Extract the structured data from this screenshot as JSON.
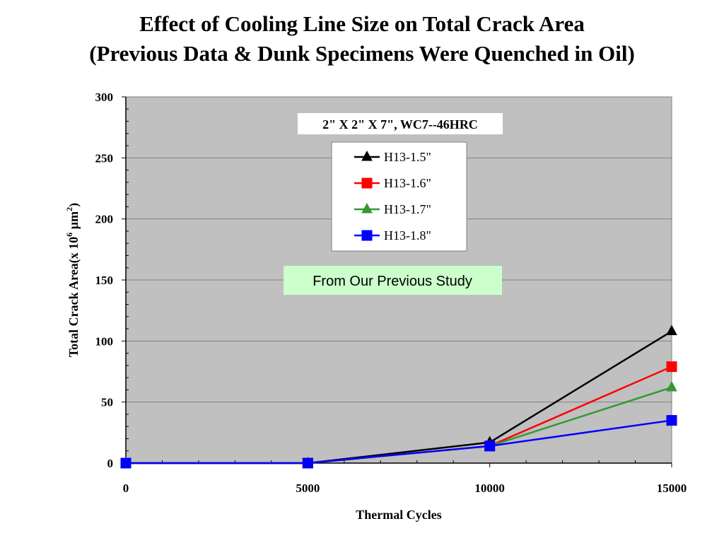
{
  "title_line1": "Effect of Cooling Line Size on Total Crack Area",
  "title_line2": "(Previous Data & Dunk Specimens Were Quenched in Oil)",
  "chart_data": {
    "type": "line",
    "xlabel": "Thermal Cycles",
    "ylabel_main": "Total Crack Area(x 10",
    "ylabel_sup1": "6",
    "ylabel_mid": " µm",
    "ylabel_sup2": "2",
    "ylabel_end": ")",
    "xlim": [
      0,
      15000
    ],
    "ylim": [
      0,
      300
    ],
    "xticks": [
      0,
      5000,
      10000,
      15000
    ],
    "yticks": [
      0,
      50,
      100,
      150,
      200,
      250,
      300
    ],
    "grid": "horizontal",
    "plot_background": "#c0c0c0",
    "series": [
      {
        "name": "H13-1.5\"",
        "color": "#000000",
        "marker": "triangle",
        "x": [
          0,
          5000,
          10000,
          15000
        ],
        "y": [
          0,
          0,
          17,
          108
        ]
      },
      {
        "name": "H13-1.6\"",
        "color": "#ff0000",
        "marker": "square",
        "x": [
          0,
          5000,
          10000,
          15000
        ],
        "y": [
          0,
          0,
          14,
          79
        ]
      },
      {
        "name": "H13-1.7\"",
        "color": "#339933",
        "marker": "triangle",
        "x": [
          0,
          5000,
          10000,
          15000
        ],
        "y": [
          0,
          0,
          14,
          62
        ]
      },
      {
        "name": "H13-1.8\"",
        "color": "#0000ff",
        "marker": "square",
        "x": [
          0,
          5000,
          10000,
          15000
        ],
        "y": [
          0,
          0,
          14,
          35
        ]
      }
    ],
    "annotations": {
      "specimen": "2\" X 2\" X 7\", WC7--46HRC",
      "previous_study": "From Our Previous Study"
    },
    "legend_position": "top-center"
  }
}
